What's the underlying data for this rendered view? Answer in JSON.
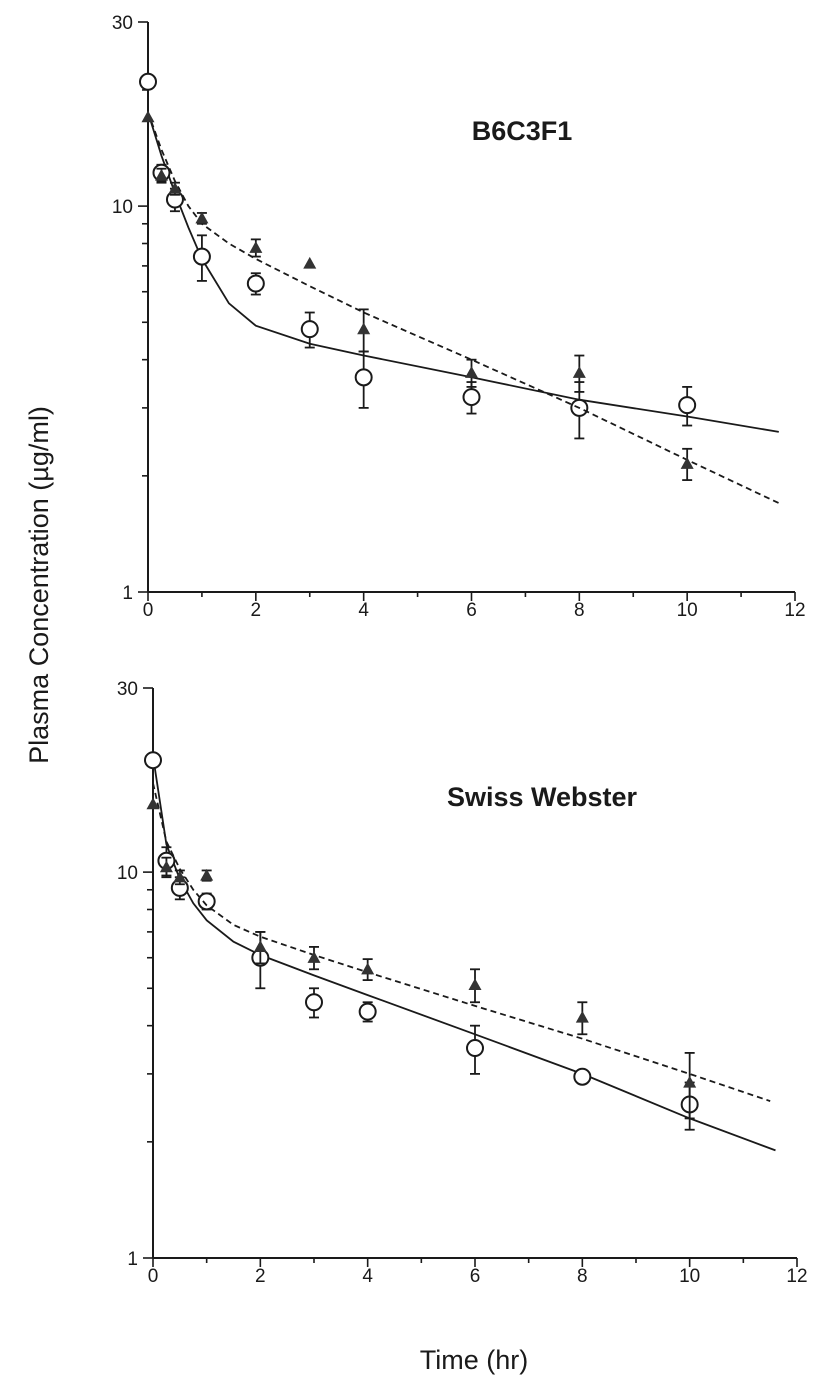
{
  "chart_data": [
    {
      "type": "scatter",
      "title": "B6C3F1",
      "xlabel": "Time (hr)",
      "ylabel": "Plasma Concentration (µg/ml)",
      "xlim": [
        0,
        12
      ],
      "ylim": [
        1,
        30
      ],
      "yscale": "log",
      "x_ticks": [
        "0",
        "2",
        "4",
        "6",
        "8",
        "10",
        "12"
      ],
      "y_ticks": [
        "1",
        "10",
        "30"
      ],
      "series": [
        {
          "marker": "open-circle",
          "fit_line": "solid",
          "points": [
            {
              "x": 0,
              "y": 21.0,
              "err": 0
            },
            {
              "x": 0.25,
              "y": 12.2,
              "err": 0.6
            },
            {
              "x": 0.5,
              "y": 10.4,
              "err": 0.7
            },
            {
              "x": 1,
              "y": 7.4,
              "err": 1.0
            },
            {
              "x": 2,
              "y": 6.3,
              "err": 0.4
            },
            {
              "x": 3,
              "y": 4.8,
              "err": 0.5
            },
            {
              "x": 4,
              "y": 3.6,
              "err": 0.6
            },
            {
              "x": 6,
              "y": 3.2,
              "err": 0.3
            },
            {
              "x": 8,
              "y": 3.0,
              "err": 0.5
            },
            {
              "x": 10,
              "y": 3.05,
              "err": 0.35
            }
          ],
          "fit": [
            [
              0,
              17.5
            ],
            [
              0.25,
              13.5
            ],
            [
              0.5,
              10.8
            ],
            [
              0.75,
              8.8
            ],
            [
              1,
              7.3
            ],
            [
              1.5,
              5.6
            ],
            [
              2,
              4.9
            ],
            [
              3,
              4.4
            ],
            [
              4,
              4.1
            ],
            [
              6,
              3.6
            ],
            [
              8,
              3.15
            ],
            [
              10,
              2.85
            ],
            [
              11.7,
              2.6
            ]
          ]
        },
        {
          "marker": "filled-triangle",
          "fit_line": "dashed",
          "points": [
            {
              "x": 0,
              "y": 17.0,
              "err": 0
            },
            {
              "x": 0.25,
              "y": 12.0,
              "err": 0.5
            },
            {
              "x": 0.5,
              "y": 11.1,
              "err": 0.4
            },
            {
              "x": 1,
              "y": 9.3,
              "err": 0.3
            },
            {
              "x": 2,
              "y": 7.8,
              "err": 0.4
            },
            {
              "x": 3,
              "y": 7.1,
              "err": 0
            },
            {
              "x": 4,
              "y": 4.8,
              "err": 0.6
            },
            {
              "x": 6,
              "y": 3.7,
              "err": 0.3
            },
            {
              "x": 8,
              "y": 3.7,
              "err": 0.4
            },
            {
              "x": 10,
              "y": 2.15,
              "err": 0.2
            }
          ],
          "fit": [
            [
              0,
              17.5
            ],
            [
              0.25,
              14.0
            ],
            [
              0.5,
              11.6
            ],
            [
              0.75,
              10.0
            ],
            [
              1,
              9.0
            ],
            [
              1.5,
              8.0
            ],
            [
              2,
              7.3
            ],
            [
              3,
              6.2
            ],
            [
              4,
              5.3
            ],
            [
              6,
              4.0
            ],
            [
              8,
              3.0
            ],
            [
              10,
              2.2
            ],
            [
              11.7,
              1.7
            ]
          ]
        }
      ]
    },
    {
      "type": "scatter",
      "title": "Swiss Webster",
      "xlabel": "Time (hr)",
      "ylabel": "Plasma Concentration (µg/ml)",
      "xlim": [
        0,
        12
      ],
      "ylim": [
        1,
        30
      ],
      "yscale": "log",
      "x_ticks": [
        "0",
        "2",
        "4",
        "6",
        "8",
        "10",
        "12"
      ],
      "y_ticks": [
        "1",
        "10",
        "30"
      ],
      "series": [
        {
          "marker": "open-circle",
          "fit_line": "solid",
          "points": [
            {
              "x": 0,
              "y": 19.5,
              "err": 0
            },
            {
              "x": 0.25,
              "y": 10.7,
              "err": 0.9
            },
            {
              "x": 0.5,
              "y": 9.1,
              "err": 0.6
            },
            {
              "x": 1,
              "y": 8.4,
              "err": 0.4
            },
            {
              "x": 2,
              "y": 6.0,
              "err": 1.0
            },
            {
              "x": 3,
              "y": 4.6,
              "err": 0.4
            },
            {
              "x": 4,
              "y": 4.35,
              "err": 0.25
            },
            {
              "x": 6,
              "y": 3.5,
              "err": 0.5
            },
            {
              "x": 8,
              "y": 2.95,
              "err": 0
            },
            {
              "x": 10,
              "y": 2.5,
              "err": 0.35
            }
          ],
          "fit": [
            [
              0,
              20.0
            ],
            [
              0.25,
              11.8
            ],
            [
              0.5,
              9.6
            ],
            [
              0.75,
              8.3
            ],
            [
              1,
              7.5
            ],
            [
              1.5,
              6.6
            ],
            [
              2,
              6.1
            ],
            [
              3,
              5.4
            ],
            [
              4,
              4.8
            ],
            [
              6,
              3.8
            ],
            [
              8,
              3.0
            ],
            [
              10,
              2.3
            ],
            [
              11.6,
              1.9
            ]
          ]
        },
        {
          "marker": "filled-triangle",
          "fit_line": "dashed",
          "points": [
            {
              "x": 0,
              "y": 15.0,
              "err": 0
            },
            {
              "x": 0.25,
              "y": 10.3,
              "err": 0.6
            },
            {
              "x": 0.5,
              "y": 9.7,
              "err": 0.4
            },
            {
              "x": 1,
              "y": 9.8,
              "err": 0.3
            },
            {
              "x": 2,
              "y": 6.4,
              "err": 0.6
            },
            {
              "x": 3,
              "y": 6.0,
              "err": 0.4
            },
            {
              "x": 4,
              "y": 5.6,
              "err": 0.35
            },
            {
              "x": 6,
              "y": 5.1,
              "err": 0.5
            },
            {
              "x": 8,
              "y": 4.2,
              "err": 0.4
            },
            {
              "x": 10,
              "y": 2.85,
              "err": 0.55
            }
          ],
          "fit": [
            [
              0,
              17.0
            ],
            [
              0.25,
              12.0
            ],
            [
              0.5,
              10.2
            ],
            [
              0.75,
              9.0
            ],
            [
              1,
              8.2
            ],
            [
              1.5,
              7.3
            ],
            [
              2,
              6.8
            ],
            [
              3,
              6.1
            ],
            [
              4,
              5.5
            ],
            [
              6,
              4.5
            ],
            [
              8,
              3.7
            ],
            [
              10,
              3.0
            ],
            [
              11.5,
              2.55
            ]
          ]
        }
      ]
    }
  ]
}
